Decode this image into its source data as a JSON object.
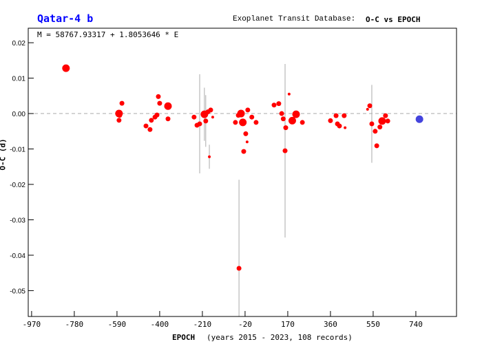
{
  "chart_data": {
    "type": "scatter",
    "title": "Qatar-4 b",
    "subtitle_prefix": "Exoplanet Transit Database:",
    "subtitle": "O-C vs EPOCH",
    "annotation": "M = 58767.93317 + 1.8053646 * E",
    "xlabel": "EPOCH",
    "xlabel_note": "(years 2015 - 2023, 108 records)",
    "ylabel": "O-C (d)",
    "xlim": [
      -985,
      921
    ],
    "ylim": [
      -0.0573,
      0.0241
    ],
    "xticks": [
      -970,
      -780,
      -590,
      -400,
      -210,
      -20,
      170,
      360,
      550,
      740
    ],
    "yticks": [
      0.02,
      0.01,
      0.0,
      -0.01,
      -0.02,
      -0.03,
      -0.04,
      -0.05
    ],
    "ytick_labels": [
      "0.02",
      "0.01",
      "0.00",
      "-0.01",
      "-0.02",
      "-0.03",
      "-0.04",
      "-0.05"
    ],
    "colors": {
      "points": "#ff0000",
      "highlight": "#4444dd",
      "title": "#0000ff",
      "errorbar": "#aaaaaa",
      "zero": "#aaaaaa"
    },
    "points": [
      {
        "x": -817,
        "y": 0.0128,
        "q": 3
      },
      {
        "x": -581,
        "y": 0.0,
        "q": 3
      },
      {
        "x": -581,
        "y": -0.0019,
        "q": 2
      },
      {
        "x": -568,
        "y": 0.0029,
        "q": 2
      },
      {
        "x": -578,
        "y": -0.0005,
        "q": 2
      },
      {
        "x": -461,
        "y": -0.0035,
        "q": 2
      },
      {
        "x": -443,
        "y": -0.0045,
        "q": 2
      },
      {
        "x": -437,
        "y": -0.0019,
        "q": 2
      },
      {
        "x": -421,
        "y": -0.001,
        "q": 2
      },
      {
        "x": -412,
        "y": -0.0004,
        "q": 2
      },
      {
        "x": -406,
        "y": 0.0048,
        "q": 2
      },
      {
        "x": -400,
        "y": 0.0029,
        "q": 2
      },
      {
        "x": -363,
        "y": 0.0021,
        "q": 3
      },
      {
        "x": -363,
        "y": -0.0015,
        "q": 2
      },
      {
        "x": -247,
        "y": -0.001,
        "q": 2
      },
      {
        "x": -234,
        "y": -0.0033,
        "q": 2
      },
      {
        "x": -222,
        "y": -0.0029,
        "q": 2,
        "err": 0.014
      },
      {
        "x": -201,
        "y": -0.0002,
        "q": 3,
        "err": 0.0075
      },
      {
        "x": -195,
        "y": -0.0021,
        "q": 2,
        "err": 0.0073
      },
      {
        "x": -185,
        "y": 0.0005,
        "q": 2
      },
      {
        "x": -179,
        "y": -0.0122,
        "q": 1,
        "err": 0.0034
      },
      {
        "x": -173,
        "y": 0.001,
        "q": 2
      },
      {
        "x": -164,
        "y": -0.001,
        "q": 1
      },
      {
        "x": -63,
        "y": -0.0025,
        "q": 2
      },
      {
        "x": -47,
        "y": -0.0437,
        "q": 2,
        "err": 0.025
      },
      {
        "x": -38,
        "y": 0.0,
        "q": 3
      },
      {
        "x": -26,
        "y": -0.0107,
        "q": 2
      },
      {
        "x": -17,
        "y": -0.0057,
        "q": 2
      },
      {
        "x": -11,
        "y": -0.008,
        "q": 1
      },
      {
        "x": -8,
        "y": 0.001,
        "q": 2
      },
      {
        "x": -30,
        "y": -0.0025,
        "q": 3
      },
      {
        "x": -50,
        "y": -0.0005,
        "q": 2
      },
      {
        "x": 29,
        "y": -0.0025,
        "q": 2
      },
      {
        "x": 10,
        "y": -0.001,
        "q": 2
      },
      {
        "x": 109,
        "y": 0.0024,
        "q": 2
      },
      {
        "x": 130,
        "y": 0.0028,
        "q": 2
      },
      {
        "x": 143,
        "y": 0.0,
        "q": 2
      },
      {
        "x": 158,
        "y": -0.0105,
        "q": 2,
        "err": 0.0245
      },
      {
        "x": 161,
        "y": -0.004,
        "q": 2
      },
      {
        "x": 176,
        "y": 0.0055,
        "q": 1
      },
      {
        "x": 207,
        "y": -0.0002,
        "q": 3
      },
      {
        "x": 190,
        "y": -0.002,
        "q": 3
      },
      {
        "x": 235,
        "y": -0.0025,
        "q": 2
      },
      {
        "x": 150,
        "y": -0.0015,
        "q": 2
      },
      {
        "x": 360,
        "y": -0.002,
        "q": 2
      },
      {
        "x": 385,
        "y": -0.0006,
        "q": 2
      },
      {
        "x": 391,
        "y": -0.0029,
        "q": 2
      },
      {
        "x": 400,
        "y": -0.0035,
        "q": 2
      },
      {
        "x": 421,
        "y": -0.0006,
        "q": 2
      },
      {
        "x": 425,
        "y": -0.004,
        "q": 1
      },
      {
        "x": 535,
        "y": 0.0022,
        "q": 2
      },
      {
        "x": 544,
        "y": -0.0029,
        "q": 2,
        "err": 0.011
      },
      {
        "x": 559,
        "y": -0.005,
        "q": 2
      },
      {
        "x": 566,
        "y": -0.0091,
        "q": 2
      },
      {
        "x": 590,
        "y": -0.0021,
        "q": 3
      },
      {
        "x": 605,
        "y": -0.0006,
        "q": 2
      },
      {
        "x": 615,
        "y": -0.0021,
        "q": 2
      },
      {
        "x": 580,
        "y": -0.0038,
        "q": 2
      },
      {
        "x": 525,
        "y": 0.0012,
        "q": 1
      }
    ],
    "highlight": [
      {
        "x": 756,
        "y": -0.0016,
        "q": 3
      }
    ]
  }
}
